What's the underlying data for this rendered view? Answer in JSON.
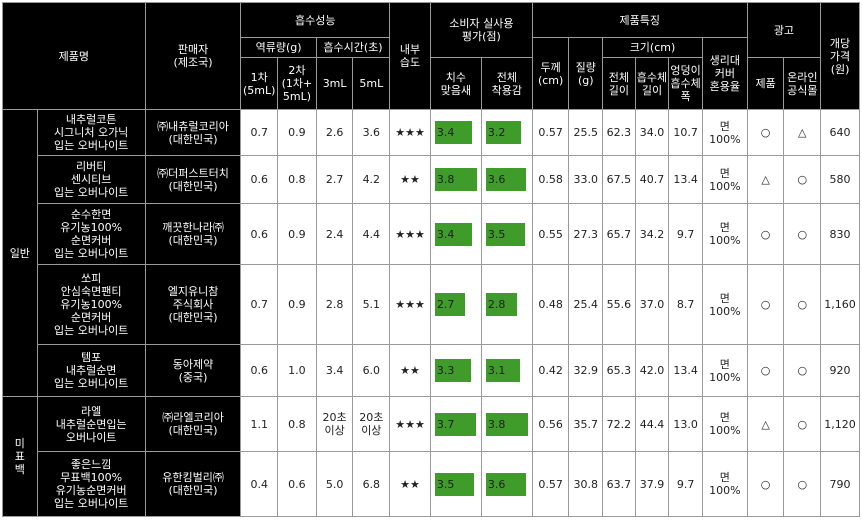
{
  "header": {
    "product_name": "제품명",
    "seller": [
      "판매자",
      "(제조국)"
    ],
    "absorption": "흡수성능",
    "backflow": "역류량(g)",
    "absorb_time": "흡수시간(초)",
    "first": [
      "1차",
      "(5mL)"
    ],
    "second": [
      "2차",
      "(1차+",
      "5mL)"
    ],
    "t3": "3mL",
    "t5": "5mL",
    "inner_wet": [
      "내부",
      "습도"
    ],
    "consumer_eval": [
      "소비자 실사용",
      "평가(점)"
    ],
    "fit": [
      "치수",
      "맞음새"
    ],
    "overall_fit": [
      "전체",
      "착용감"
    ],
    "features": "제품특징",
    "thickness": [
      "두께",
      "(cm)"
    ],
    "weight": [
      "질량",
      "(g)"
    ],
    "size": "크기(cm)",
    "total_length": [
      "전체",
      "길이"
    ],
    "absorber_length": [
      "흡수체",
      "길이"
    ],
    "hip_width": [
      "엉덩이",
      "흡수체",
      "폭"
    ],
    "cover_material": [
      "생리대",
      "커버",
      "혼용율"
    ],
    "ad": "광고",
    "ad_product": "제품",
    "ad_online": [
      "온라인",
      "공식몰"
    ],
    "price": [
      "개당",
      "가격",
      "(원)"
    ]
  },
  "groups": [
    {
      "label": "일반"
    },
    {
      "label": [
        "미",
        "표",
        "백"
      ]
    }
  ],
  "rows": [
    {
      "name": [
        "내추럴코튼",
        "시그니처 오가닉",
        "입는 오버나이트"
      ],
      "seller": [
        "㈜내츄럴코리아",
        "(대한민국)"
      ],
      "bf1": "0.7",
      "bf2": "0.9",
      "t3": "2.6",
      "t5": "3.6",
      "wet": "★★★",
      "fit": 3.4,
      "fit_label": "3.4",
      "overall": 3.2,
      "overall_label": "3.2",
      "thick": "0.57",
      "weight": "25.5",
      "total": "62.3",
      "absorber": "34.0",
      "hip": "10.7",
      "cover": [
        "면",
        "100%"
      ],
      "ad_prod": "○",
      "ad_online": "△",
      "price": "640"
    },
    {
      "name": [
        "리버티",
        "센시티브",
        "입는 오버나이트"
      ],
      "seller": [
        "㈜더퍼스트터치",
        "(대한민국)"
      ],
      "bf1": "0.6",
      "bf2": "0.8",
      "t3": "2.7",
      "t5": "4.2",
      "wet": "★★",
      "fit": 3.8,
      "fit_label": "3.8",
      "overall": 3.6,
      "overall_label": "3.6",
      "thick": "0.58",
      "weight": "33.0",
      "total": "67.5",
      "absorber": "40.7",
      "hip": "13.4",
      "cover": [
        "면",
        "100%"
      ],
      "ad_prod": "△",
      "ad_online": "○",
      "price": "580"
    },
    {
      "name": [
        "순수한면",
        "유기농100%",
        "순면커버",
        "입는 오버나이트"
      ],
      "seller": [
        "깨끗한나라㈜",
        "(대한민국)"
      ],
      "bf1": "0.6",
      "bf2": "0.9",
      "t3": "2.4",
      "t5": "4.4",
      "wet": "★★★",
      "fit": 3.4,
      "fit_label": "3.4",
      "overall": 3.5,
      "overall_label": "3.5",
      "thick": "0.55",
      "weight": "27.3",
      "total": "65.7",
      "absorber": "34.2",
      "hip": "9.7",
      "cover": [
        "면",
        "100%"
      ],
      "ad_prod": "○",
      "ad_online": "○",
      "price": "830"
    },
    {
      "name": [
        "쏘피",
        "안심숙면팬티",
        "유기농100%",
        "순면커버",
        "입는 오버나이트"
      ],
      "seller": [
        "엘지유니참",
        "주식회사",
        "(대한민국)"
      ],
      "bf1": "0.7",
      "bf2": "0.9",
      "t3": "2.8",
      "t5": "5.1",
      "wet": "★★★",
      "fit": 2.7,
      "fit_label": "2.7",
      "overall": 2.8,
      "overall_label": "2.8",
      "thick": "0.48",
      "weight": "25.4",
      "total": "55.6",
      "absorber": "37.0",
      "hip": "8.7",
      "cover": [
        "면",
        "100%"
      ],
      "ad_prod": "○",
      "ad_online": "○",
      "price": "1,160"
    },
    {
      "name": [
        "템포",
        "내추럴순면",
        "입는 오버나이트"
      ],
      "seller": [
        "동아제약",
        "(중국)"
      ],
      "bf1": "0.6",
      "bf2": "1.0",
      "t3": "3.4",
      "t5": "6.0",
      "wet": "★★",
      "fit": 3.3,
      "fit_label": "3.3",
      "overall": 3.1,
      "overall_label": "3.1",
      "thick": "0.42",
      "weight": "32.9",
      "total": "65.3",
      "absorber": "42.0",
      "hip": "13.4",
      "cover": [
        "면",
        "100%"
      ],
      "ad_prod": "○",
      "ad_online": "○",
      "price": "920"
    },
    {
      "name": [
        "라엘",
        "내추럴순면입는",
        "오버나이트"
      ],
      "seller": [
        "㈜라엘코리아",
        "(대한민국)"
      ],
      "bf1": "1.1",
      "bf2": "0.8",
      "t3": [
        "20초",
        "이상"
      ],
      "t5": [
        "20초",
        "이상"
      ],
      "wet": "★★★",
      "fit": 3.7,
      "fit_label": "3.7",
      "overall": 3.8,
      "overall_label": "3.8",
      "thick": "0.56",
      "weight": "35.7",
      "total": "72.2",
      "absorber": "44.4",
      "hip": "13.0",
      "cover": [
        "면",
        "100%"
      ],
      "ad_prod": "△",
      "ad_online": "○",
      "price": "1,120"
    },
    {
      "name": [
        "좋은느낌",
        "무표백100%",
        "유기농순면커버",
        "입는 오버나이트"
      ],
      "seller": [
        "유한킴벌리㈜",
        "(대한민국)"
      ],
      "bf1": "0.4",
      "bf2": "0.6",
      "t3": "5.0",
      "t5": "6.8",
      "wet": "★★",
      "fit": 3.5,
      "fit_label": "3.5",
      "overall": 3.6,
      "overall_label": "3.6",
      "thick": "0.57",
      "weight": "30.8",
      "total": "63.7",
      "absorber": "37.9",
      "hip": "9.7",
      "cover": [
        "면",
        "100%"
      ],
      "ad_prod": "○",
      "ad_online": "○",
      "price": "790"
    }
  ],
  "colors": {
    "header_bg": "#000000",
    "header_text": "#ffffff",
    "bar": "#3f9b2a",
    "border": "#9a9a9a"
  },
  "scale": {
    "bar_max": 4.0
  }
}
